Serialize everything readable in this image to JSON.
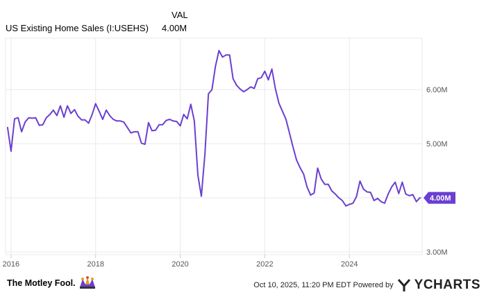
{
  "legend": {
    "header": "VAL",
    "series_name": "US Existing Home Sales (I:USEHS)",
    "series_value": "4.00M"
  },
  "colors": {
    "line": "#6a3fd1",
    "grid": "#e9e9e9",
    "axis": "#cccccc",
    "tick_text": "#555555",
    "badge_bg": "#6a3fd1",
    "badge_text": "#ffffff"
  },
  "footer": {
    "brand": "The Motley Fool.",
    "timestamp": "Oct 10, 2025, 11:20 PM EDT Powered by",
    "provider": "YCHARTS",
    "brand_icon": "jester-hat-icon",
    "provider_icon": "ycharts-y-icon"
  },
  "chart_data": {
    "type": "line",
    "title": "",
    "xlabel": "",
    "ylabel": "",
    "x_ticks": [
      "2016",
      "2018",
      "2020",
      "2022",
      "2024"
    ],
    "y_ticks": [
      "3.00M",
      "4.00M",
      "5.00M",
      "6.00M"
    ],
    "ylim": [
      2.95,
      6.95
    ],
    "xlim": [
      2015.87,
      2025.72
    ],
    "grid": true,
    "last_value_badge": "4.00M",
    "series": [
      {
        "name": "US Existing Home Sales (I:USEHS)",
        "units": "millions",
        "x": [
          2015.917,
          2016.0,
          2016.083,
          2016.167,
          2016.25,
          2016.333,
          2016.417,
          2016.5,
          2016.583,
          2016.667,
          2016.75,
          2016.833,
          2016.917,
          2017.0,
          2017.083,
          2017.167,
          2017.25,
          2017.333,
          2017.417,
          2017.5,
          2017.583,
          2017.667,
          2017.75,
          2017.833,
          2017.917,
          2018.0,
          2018.083,
          2018.167,
          2018.25,
          2018.333,
          2018.417,
          2018.5,
          2018.583,
          2018.667,
          2018.75,
          2018.833,
          2018.917,
          2019.0,
          2019.083,
          2019.167,
          2019.25,
          2019.333,
          2019.417,
          2019.5,
          2019.583,
          2019.667,
          2019.75,
          2019.833,
          2019.917,
          2020.0,
          2020.083,
          2020.167,
          2020.25,
          2020.333,
          2020.417,
          2020.5,
          2020.583,
          2020.667,
          2020.75,
          2020.833,
          2020.917,
          2021.0,
          2021.083,
          2021.167,
          2021.25,
          2021.333,
          2021.417,
          2021.5,
          2021.583,
          2021.667,
          2021.75,
          2021.833,
          2021.917,
          2022.0,
          2022.083,
          2022.167,
          2022.25,
          2022.333,
          2022.417,
          2022.5,
          2022.583,
          2022.667,
          2022.75,
          2022.833,
          2022.917,
          2023.0,
          2023.083,
          2023.167,
          2023.25,
          2023.333,
          2023.417,
          2023.5,
          2023.583,
          2023.667,
          2023.75,
          2023.833,
          2023.917,
          2024.0,
          2024.083,
          2024.167,
          2024.25,
          2024.333,
          2024.417,
          2024.5,
          2024.583,
          2024.667,
          2024.75,
          2024.833,
          2024.917,
          2025.0,
          2025.083,
          2025.167,
          2025.25,
          2025.333,
          2025.417,
          2025.5,
          2025.583,
          2025.667
        ],
        "y": [
          5.3,
          4.86,
          5.46,
          5.48,
          5.22,
          5.4,
          5.48,
          5.47,
          5.48,
          5.34,
          5.35,
          5.48,
          5.54,
          5.62,
          5.52,
          5.7,
          5.49,
          5.7,
          5.56,
          5.63,
          5.51,
          5.44,
          5.44,
          5.38,
          5.54,
          5.74,
          5.6,
          5.45,
          5.62,
          5.52,
          5.45,
          5.42,
          5.42,
          5.4,
          5.3,
          5.2,
          5.22,
          5.22,
          5.01,
          4.99,
          5.39,
          5.24,
          5.25,
          5.35,
          5.35,
          5.43,
          5.45,
          5.42,
          5.41,
          5.33,
          5.54,
          5.46,
          5.73,
          5.42,
          4.42,
          4.03,
          4.8,
          5.92,
          6.0,
          6.43,
          6.72,
          6.6,
          6.64,
          6.64,
          6.2,
          6.08,
          6.01,
          5.96,
          6.0,
          6.05,
          6.02,
          6.2,
          6.22,
          6.34,
          6.18,
          6.38,
          6.02,
          5.75,
          5.6,
          5.45,
          5.2,
          4.94,
          4.7,
          4.56,
          4.44,
          4.2,
          4.05,
          4.09,
          4.55,
          4.35,
          4.25,
          4.25,
          4.13,
          4.07,
          4.0,
          3.95,
          3.85,
          3.88,
          3.9,
          4.02,
          4.31,
          4.16,
          4.11,
          4.1,
          3.95,
          3.99,
          3.93,
          3.9,
          4.07,
          4.2,
          4.29,
          4.08,
          4.29,
          4.07,
          4.04,
          4.06,
          3.93,
          4.0
        ]
      }
    ]
  }
}
